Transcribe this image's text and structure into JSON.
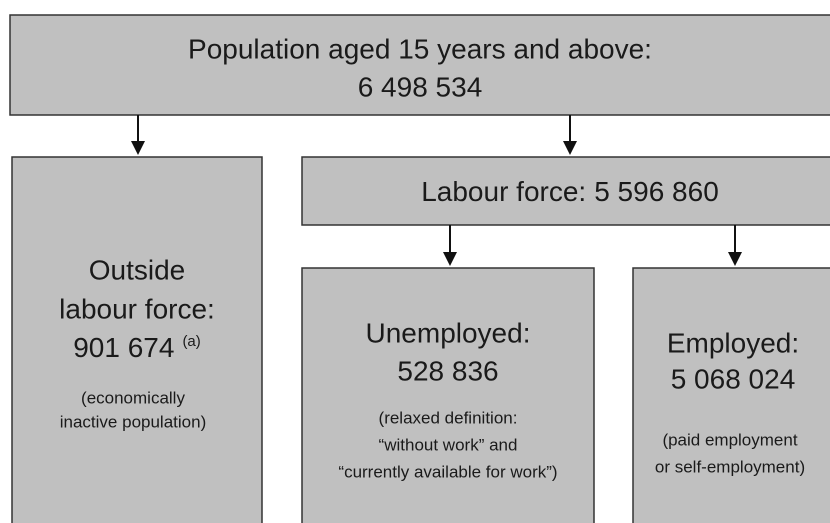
{
  "nodes": [
    {
      "title": "Population aged 15 years and above:",
      "value": "6 498 534"
    },
    {
      "title_lines": [
        "Outside",
        "labour force:"
      ],
      "value": "901 674",
      "note": "(a)",
      "description": [
        "(economically",
        "inactive population)"
      ]
    },
    {
      "title": "Labour force:",
      "value": "5 596 860"
    },
    {
      "title": "Unemployed:",
      "value": "528 836",
      "description": [
        "(relaxed definition:",
        "“without work” and",
        "“currently available for work”)"
      ]
    },
    {
      "title": "Employed:",
      "value": "5 068 024",
      "description": [
        "(paid employment",
        "or self-employment)"
      ]
    }
  ]
}
